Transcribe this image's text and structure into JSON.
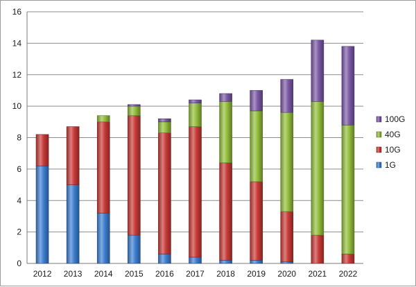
{
  "chart_data": {
    "type": "bar",
    "stacked": true,
    "categories": [
      "2012",
      "2013",
      "2014",
      "2015",
      "2016",
      "2017",
      "2018",
      "2019",
      "2020",
      "2021",
      "2022"
    ],
    "series": [
      {
        "name": "1G",
        "color": "#3d7fd1",
        "values": [
          6.2,
          5.0,
          3.2,
          1.8,
          0.6,
          0.4,
          0.2,
          0.2,
          0.1,
          0.0,
          0.0
        ]
      },
      {
        "name": "10G",
        "color": "#c93a37",
        "values": [
          2.0,
          3.7,
          5.8,
          7.6,
          7.7,
          8.3,
          6.2,
          5.0,
          3.2,
          1.8,
          0.6
        ]
      },
      {
        "name": "40G",
        "color": "#93be3c",
        "values": [
          0.0,
          0.0,
          0.4,
          0.6,
          0.7,
          1.5,
          3.9,
          4.5,
          6.3,
          8.5,
          8.2
        ]
      },
      {
        "name": "100G",
        "color": "#7c59a6",
        "values": [
          0.0,
          0.0,
          0.0,
          0.1,
          0.2,
          0.2,
          0.5,
          1.3,
          2.1,
          3.9,
          5.0
        ]
      }
    ],
    "title": "",
    "xlabel": "",
    "ylabel": "",
    "ylim": [
      0,
      16
    ],
    "yticks": [
      "0",
      "2",
      "4",
      "6",
      "8",
      "10",
      "12",
      "14",
      "16"
    ],
    "grid": "horizontal",
    "legend": {
      "position": "right",
      "order": [
        "100G",
        "40G",
        "10G",
        "1G"
      ]
    }
  }
}
